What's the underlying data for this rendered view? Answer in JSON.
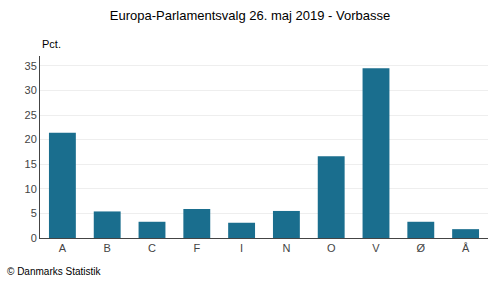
{
  "chart_data": {
    "type": "bar",
    "title": "Europa-Parlamentsvalg 26. maj 2019 - Vorbasse",
    "ylabel": "Pct.",
    "annotations": [
      "© Danmarks Statistik"
    ],
    "categories": [
      "A",
      "B",
      "C",
      "F",
      "I",
      "N",
      "O",
      "V",
      "Ø",
      "Å"
    ],
    "values": [
      21.4,
      5.4,
      3.3,
      5.9,
      3.1,
      5.5,
      16.6,
      34.5,
      3.3,
      1.8
    ],
    "color": "#1a6e8e",
    "ylim": [
      0,
      37
    ],
    "yticks": [
      0,
      5,
      10,
      15,
      20,
      25,
      30,
      35
    ],
    "grid": true
  }
}
